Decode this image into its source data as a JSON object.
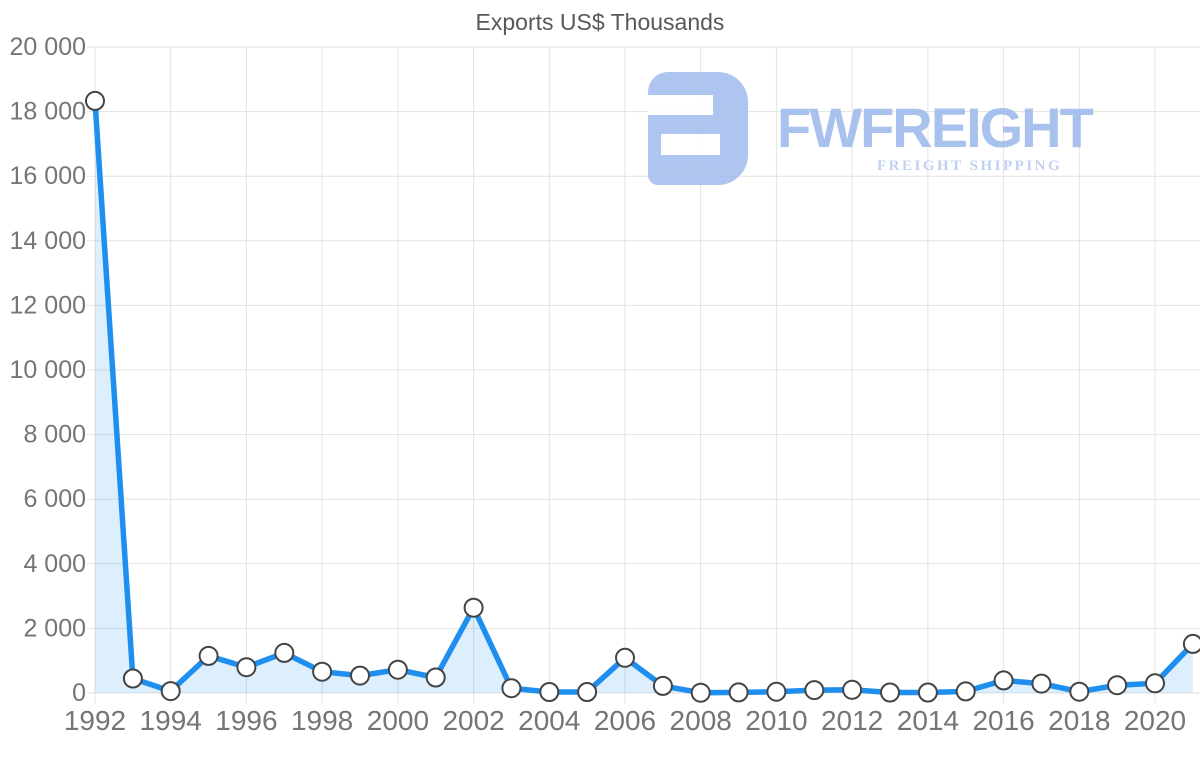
{
  "title": "Exports US$ Thousands",
  "watermark": {
    "brand": "FWFREIGHT",
    "tagline": "FREIGHT SHIPPING",
    "logo_color": "#a6c0ee",
    "brand_color": "#9fbbec",
    "tagline_color": "#b9cbf1"
  },
  "colors": {
    "line": "#1E8FEF",
    "fill": "rgba(30,143,239,0.15)",
    "grid": "#e3e3e3",
    "axis_label": "#757575",
    "title": "#58585a",
    "marker_fill": "#ffffff",
    "marker_stroke": "#444444"
  },
  "chart_data": {
    "type": "area",
    "title": "Exports US$ Thousands",
    "xlabel": "",
    "ylabel": "",
    "x": [
      1992,
      1993,
      1994,
      1995,
      1996,
      1997,
      1998,
      1999,
      2000,
      2001,
      2002,
      2003,
      2004,
      2005,
      2006,
      2007,
      2008,
      2009,
      2010,
      2011,
      2012,
      2013,
      2014,
      2015,
      2016,
      2017,
      2018,
      2019,
      2020,
      2021
    ],
    "series": [
      {
        "name": "Exports US$ Thousands",
        "values": [
          18330,
          450,
          60,
          1150,
          800,
          1240,
          660,
          540,
          720,
          480,
          2640,
          150,
          30,
          30,
          1090,
          220,
          10,
          20,
          40,
          90,
          100,
          15,
          15,
          50,
          390,
          290,
          40,
          240,
          300,
          1520
        ]
      }
    ],
    "ylim": [
      0,
      20000
    ],
    "ytick_interval": 2000,
    "ytick_labels": [
      "0",
      "2 000",
      "4 000",
      "6 000",
      "8 000",
      "10 000",
      "12 000",
      "14 000",
      "16 000",
      "18 000",
      "20 000"
    ],
    "xtick_labels": [
      "1992",
      "1994",
      "1996",
      "1998",
      "2000",
      "2002",
      "2004",
      "2006",
      "2008",
      "2010",
      "2012",
      "2014",
      "2016",
      "2018",
      "2020"
    ],
    "grid": true,
    "legend": "none",
    "markers": "circle"
  }
}
